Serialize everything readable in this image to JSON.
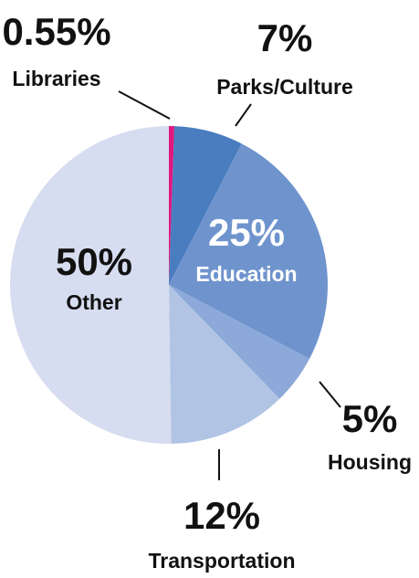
{
  "chart_data": {
    "type": "pie",
    "categories": [
      "Libraries",
      "Parks/Culture",
      "Education",
      "Housing",
      "Transportation",
      "Other"
    ],
    "values": [
      0.55,
      7,
      25,
      5,
      12,
      50
    ],
    "value_labels": [
      "0.55%",
      "7%",
      "25%",
      "5%",
      "12%",
      "50%"
    ],
    "colors": [
      "#e0177f",
      "#4a7dbf",
      "#6f94cd",
      "#8ca9d9",
      "#b2c4e4",
      "#d6ddf0"
    ]
  }
}
